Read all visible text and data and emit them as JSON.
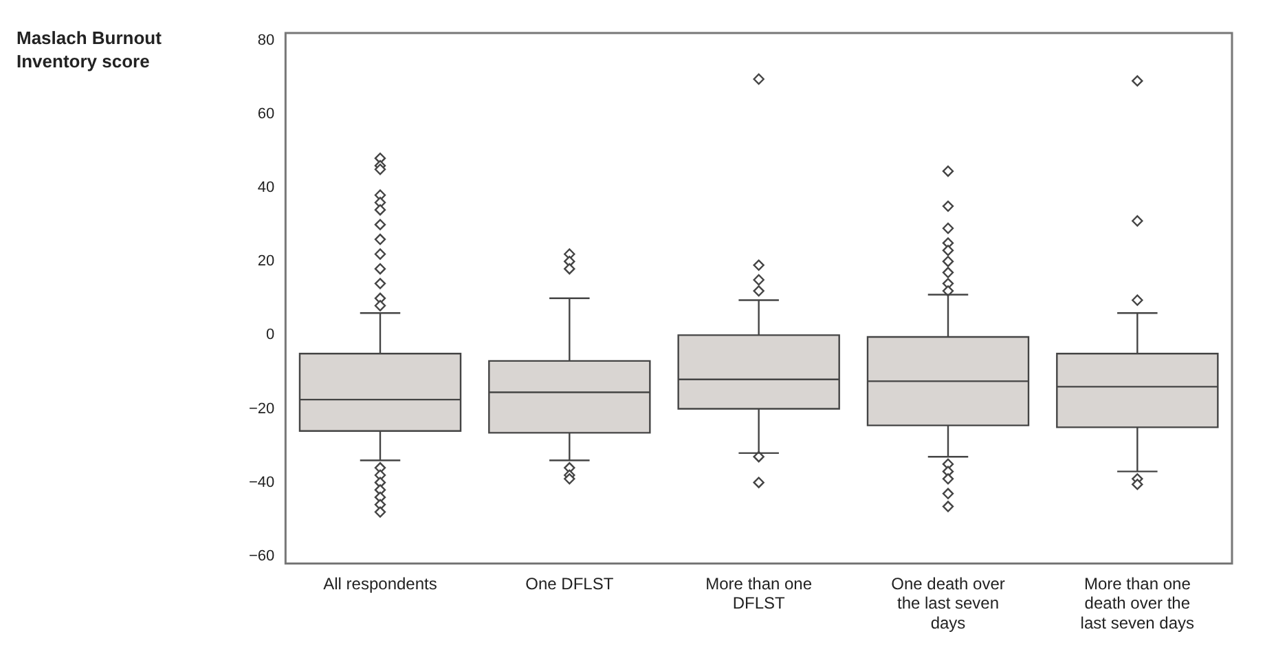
{
  "chart_data": {
    "type": "box",
    "ylabel": "Maslach Burnout Inventory score",
    "categories": [
      "All respondents",
      "One DFLST",
      "More than one DFLST",
      "One death over the last seven days",
      "More than one death over the last seven days"
    ],
    "color": "#d9d5d2",
    "ylim": [
      -62,
      82
    ],
    "yticks": [
      -60,
      -40,
      -20,
      0,
      20,
      40,
      60,
      80
    ],
    "grid": false,
    "marker": "diamond",
    "boxes": [
      {
        "low": -34,
        "q1": -26,
        "median": -17.5,
        "q3": -5,
        "high": 6,
        "outliers": [
          48,
          46,
          45,
          38,
          36,
          34,
          30,
          26,
          22,
          18,
          14,
          10,
          8,
          -36,
          -38,
          -40,
          -42,
          -44,
          -46,
          -48
        ]
      },
      {
        "low": -34,
        "q1": -26.5,
        "median": -15.5,
        "q3": -7,
        "high": 10,
        "outliers": [
          22,
          20,
          18,
          -36,
          -38,
          -39
        ]
      },
      {
        "low": -32,
        "q1": -20,
        "median": -12,
        "q3": 0,
        "high": 9.5,
        "outliers": [
          69.5,
          19,
          15,
          12,
          -33,
          -40
        ]
      },
      {
        "low": -33,
        "q1": -24.5,
        "median": -12.5,
        "q3": -0.5,
        "high": 11,
        "outliers": [
          44.5,
          35,
          29,
          25,
          23,
          20,
          17,
          14,
          12,
          -35,
          -37,
          -39,
          -43,
          -46.5
        ]
      },
      {
        "low": -37,
        "q1": -25,
        "median": -14,
        "q3": -5,
        "high": 6,
        "outliers": [
          69,
          31,
          9.5,
          -39,
          -40.5
        ]
      }
    ]
  }
}
